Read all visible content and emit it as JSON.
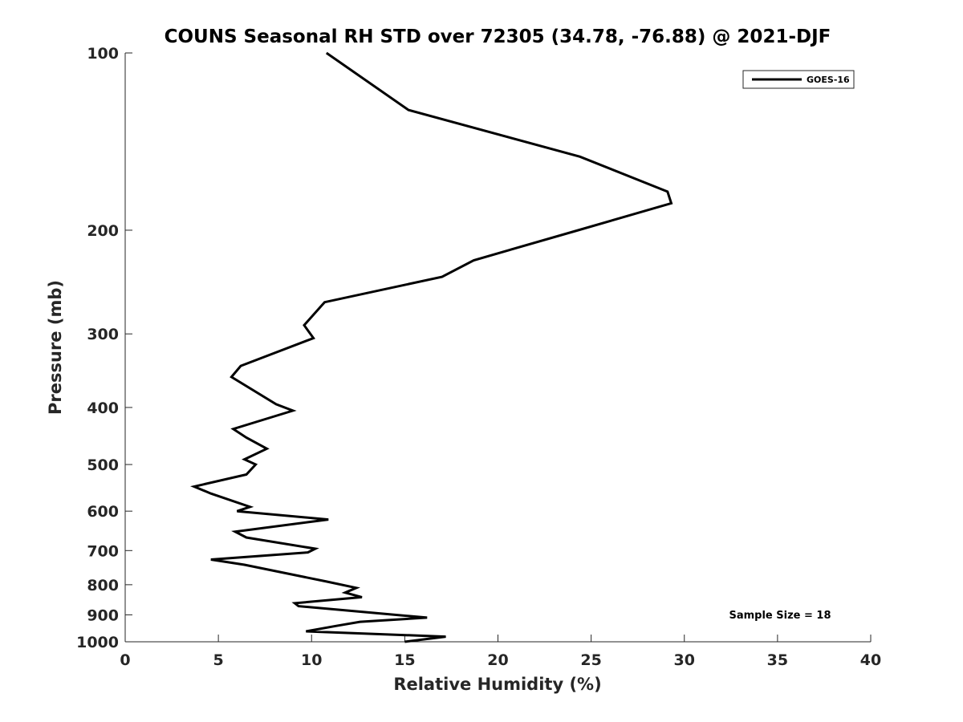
{
  "chart_data": {
    "type": "line",
    "title": "COUNS Seasonal RH STD over 72305 (34.78, -76.88) @ 2021-DJF",
    "xlabel": "Relative Humidity (%)",
    "ylabel": "Pressure (mb)",
    "xlim": [
      0,
      40
    ],
    "ylim": [
      1000,
      100
    ],
    "y_scale": "log",
    "y_reversed": true,
    "x_ticks": [
      0,
      5,
      10,
      15,
      20,
      25,
      30,
      35,
      40
    ],
    "x_tick_labels": [
      "0",
      "5",
      "10",
      "15",
      "20",
      "25",
      "30",
      "35",
      "40"
    ],
    "y_ticks": [
      100,
      200,
      300,
      400,
      500,
      600,
      700,
      800,
      900,
      1000
    ],
    "y_tick_labels": [
      "100",
      "200",
      "300",
      "400",
      "500",
      "600",
      "700",
      "800",
      "900",
      "1000"
    ],
    "grid": false,
    "legend": {
      "placement": "top-right",
      "entries": [
        "GOES-16"
      ]
    },
    "annotation": "Sample Size = 18",
    "series": [
      {
        "name": "GOES-16",
        "color": "#000000",
        "x": [
          15.0,
          17.2,
          9.7,
          11.3,
          12.6,
          16.2,
          9.3,
          9.1,
          12.7,
          11.8,
          12.4,
          10.8,
          6.4,
          4.6,
          9.8,
          10.2,
          6.5,
          5.9,
          10.9,
          6.0,
          6.7,
          4.6,
          3.7,
          6.5,
          7.0,
          6.4,
          7.6,
          6.5,
          5.8,
          9.0,
          8.1,
          5.7,
          6.2,
          10.1,
          9.6,
          10.7,
          17.0,
          18.7,
          24.3,
          29.3,
          29.1,
          24.4,
          15.2,
          10.8
        ],
        "y": [
          1000,
          980,
          960,
          940,
          925,
          910,
          870,
          860,
          840,
          825,
          810,
          790,
          740,
          725,
          705,
          695,
          665,
          650,
          620,
          600,
          590,
          560,
          545,
          520,
          500,
          490,
          470,
          450,
          435,
          405,
          395,
          355,
          340,
          305,
          290,
          265,
          240,
          225,
          200,
          180,
          172,
          150,
          125,
          100
        ]
      }
    ]
  }
}
